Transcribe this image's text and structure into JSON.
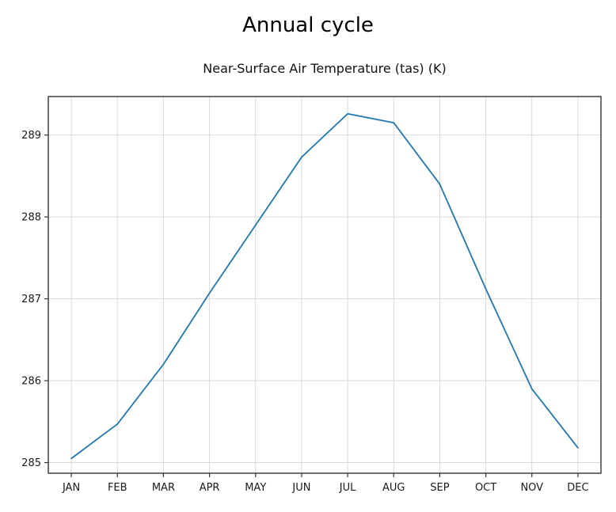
{
  "figure": {
    "title": "Annual cycle",
    "subtitle": "Near-Surface Air Temperature (tas) (K)"
  },
  "chart_data": {
    "type": "line",
    "title": "Annual cycle",
    "subtitle": "Near-Surface Air Temperature (tas) (K)",
    "categories": [
      "JAN",
      "FEB",
      "MAR",
      "APR",
      "MAY",
      "JUN",
      "JUL",
      "AUG",
      "SEP",
      "OCT",
      "NOV",
      "DEC"
    ],
    "series": [
      {
        "name": "near-surface-air-temperature-tas",
        "color": "#1f77b4",
        "values": [
          285.05,
          285.47,
          286.2,
          287.07,
          287.9,
          288.73,
          289.26,
          289.15,
          288.4,
          287.12,
          285.9,
          285.18
        ]
      }
    ],
    "xlabel": "",
    "ylabel": "",
    "yticks": [
      285,
      286,
      287,
      288,
      289
    ],
    "ylim": [
      284.87,
      289.47
    ],
    "xlim": [
      -0.5,
      11.5
    ],
    "grid": true,
    "legend_position": "none",
    "units": "K"
  },
  "colors": {
    "line": "#1f77b4",
    "grid": "#d9d9d9",
    "spine": "#333333",
    "tick_label": "#1a1a1a",
    "title": "#000000",
    "background": "#ffffff"
  }
}
